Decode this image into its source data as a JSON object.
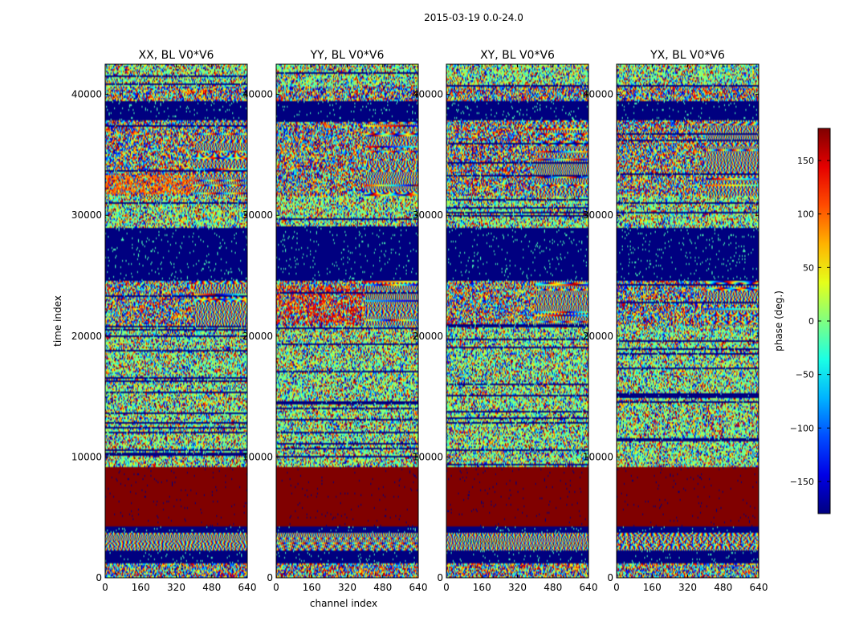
{
  "chart_data": {
    "type": "heatmap",
    "suptitle": "2015-03-19 0.0-24.0",
    "xlabel": "channel index",
    "ylabel": "time index",
    "xlim": [
      0,
      640
    ],
    "ylim": [
      0,
      42500
    ],
    "xticks": [
      "0",
      "160",
      "320",
      "480",
      "640"
    ],
    "yticks": [
      "0",
      "10000",
      "20000",
      "30000",
      "40000"
    ],
    "colorbar": {
      "label": "phase (deg.)",
      "range": [
        -180,
        180
      ],
      "ticks": [
        "150",
        "100",
        "50",
        "0",
        "−50",
        "−100",
        "−150"
      ],
      "tick_values": [
        150,
        100,
        50,
        0,
        -50,
        -100,
        -150
      ],
      "colormap": "jet"
    },
    "panels": [
      {
        "title": "XX, BL V0*V6",
        "seed": 11
      },
      {
        "title": "YY, BL V0*V6",
        "seed": 23
      },
      {
        "title": "XY, BL V0*V6",
        "seed": 37
      },
      {
        "title": "YX, BL V0*V6",
        "seed": 53
      }
    ],
    "time_bands": [
      {
        "from": 0,
        "to": 1200,
        "kind": "noise"
      },
      {
        "from": 1200,
        "to": 1600,
        "kind": "blank"
      },
      {
        "from": 1600,
        "to": 2200,
        "kind": "blank"
      },
      {
        "from": 2200,
        "to": 3700,
        "kind": "stripes"
      },
      {
        "from": 3700,
        "to": 4200,
        "kind": "blank"
      },
      {
        "from": 4200,
        "to": 9200,
        "kind": "red"
      },
      {
        "from": 9200,
        "to": 11200,
        "kind": "mixed"
      },
      {
        "from": 11200,
        "to": 20800,
        "kind": "mixed"
      },
      {
        "from": 20800,
        "to": 24600,
        "kind": "fringe"
      },
      {
        "from": 24600,
        "to": 29000,
        "kind": "blank"
      },
      {
        "from": 29000,
        "to": 31600,
        "kind": "mixed"
      },
      {
        "from": 31600,
        "to": 33900,
        "kind": "fringe"
      },
      {
        "from": 33900,
        "to": 37800,
        "kind": "fringe"
      },
      {
        "from": 37800,
        "to": 39400,
        "kind": "blank"
      },
      {
        "from": 39400,
        "to": 40700,
        "kind": "noise"
      },
      {
        "from": 40700,
        "to": 42500,
        "kind": "mixed"
      }
    ]
  }
}
